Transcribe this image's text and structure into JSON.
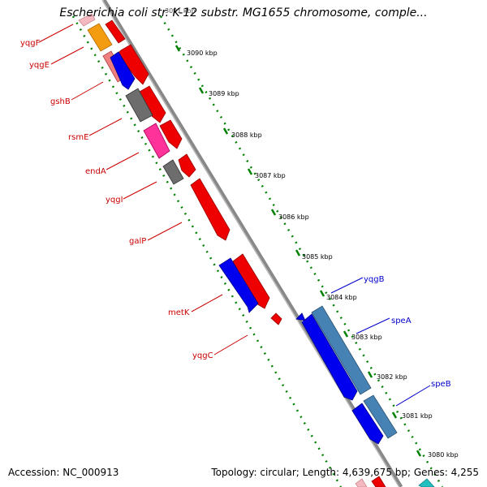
{
  "header": {
    "title": "Escherichia coli str. K-12 substr. MG1655 chromosome, comple..."
  },
  "footer": {
    "accession": "Accession: NC_000913",
    "topology": "Topology: circular; Length: 4,639,675 bp; Genes: 4,255"
  },
  "ruler": {
    "ticks": [
      {
        "label": "3090 kbp"
      },
      {
        "label": "3089 kbp"
      },
      {
        "label": "3088 kbp"
      },
      {
        "label": "3087 kbp"
      },
      {
        "label": "3086 kbp"
      },
      {
        "label": "3085 kbp"
      },
      {
        "label": "3084 kbp"
      },
      {
        "label": "3083 kbp"
      },
      {
        "label": "3082 kbp"
      },
      {
        "label": "3081 kbp"
      },
      {
        "label": "3080 kbp"
      }
    ]
  },
  "genes": {
    "left": [
      {
        "label": "yqgF",
        "color": "#cc0000"
      },
      {
        "label": "yqgE",
        "color": "#cc0000"
      },
      {
        "label": "gshB",
        "color": "#cc0000"
      },
      {
        "label": "rsmE",
        "color": "#cc0000"
      },
      {
        "label": "endA",
        "color": "#cc0000"
      },
      {
        "label": "yqgI",
        "color": "#cc0000"
      },
      {
        "label": "galP",
        "color": "#cc0000"
      },
      {
        "label": "metK",
        "color": "#cc0000"
      },
      {
        "label": "yqgC",
        "color": "#cc0000"
      }
    ],
    "right": [
      {
        "label": "yqgB",
        "color": "#0000cc"
      },
      {
        "label": "speA",
        "color": "#0000cc"
      },
      {
        "label": "speB",
        "color": "#0000cc"
      }
    ]
  },
  "colors": {
    "forward_cds": "#ee0000",
    "reverse_cds": "#0000ee",
    "steelblue": "#4682b4",
    "grey": "#666666",
    "orange": "#f39c12",
    "pink": "#ff3399",
    "salmon": "#f08080",
    "backbone": "#888888",
    "dotted": "#008000"
  }
}
